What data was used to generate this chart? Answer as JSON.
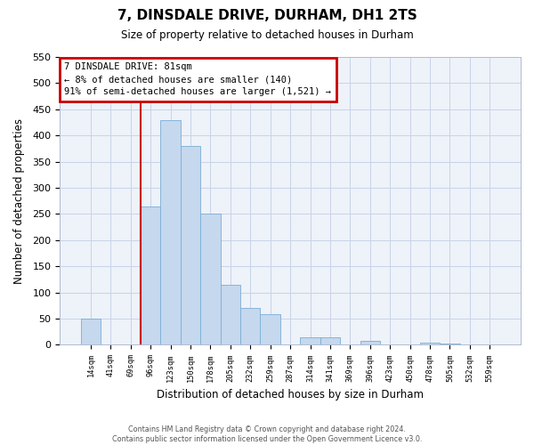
{
  "title": "7, DINSDALE DRIVE, DURHAM, DH1 2TS",
  "subtitle": "Size of property relative to detached houses in Durham",
  "xlabel": "Distribution of detached houses by size in Durham",
  "ylabel": "Number of detached properties",
  "bar_labels": [
    "14sqm",
    "41sqm",
    "69sqm",
    "96sqm",
    "123sqm",
    "150sqm",
    "178sqm",
    "205sqm",
    "232sqm",
    "259sqm",
    "287sqm",
    "314sqm",
    "341sqm",
    "369sqm",
    "396sqm",
    "423sqm",
    "450sqm",
    "478sqm",
    "505sqm",
    "532sqm",
    "559sqm"
  ],
  "bar_values": [
    50,
    0,
    0,
    265,
    430,
    380,
    250,
    115,
    70,
    58,
    0,
    15,
    15,
    0,
    7,
    0,
    0,
    5,
    2,
    0,
    1
  ],
  "bar_color": "#c5d8ee",
  "bar_edge_color": "#7aaed6",
  "annotation_title": "7 DINSDALE DRIVE: 81sqm",
  "annotation_line1": "← 8% of detached houses are smaller (140)",
  "annotation_line2": "91% of semi-detached houses are larger (1,521) →",
  "annotation_box_color": "#ffffff",
  "annotation_box_edge": "#cc0000",
  "redline_color": "#cc0000",
  "ylim": [
    0,
    550
  ],
  "yticks": [
    0,
    50,
    100,
    150,
    200,
    250,
    300,
    350,
    400,
    450,
    500,
    550
  ],
  "footer1": "Contains HM Land Registry data © Crown copyright and database right 2024.",
  "footer2": "Contains public sector information licensed under the Open Government Licence v3.0.",
  "bg_color": "#eef2f9",
  "redline_bin_index": 3
}
